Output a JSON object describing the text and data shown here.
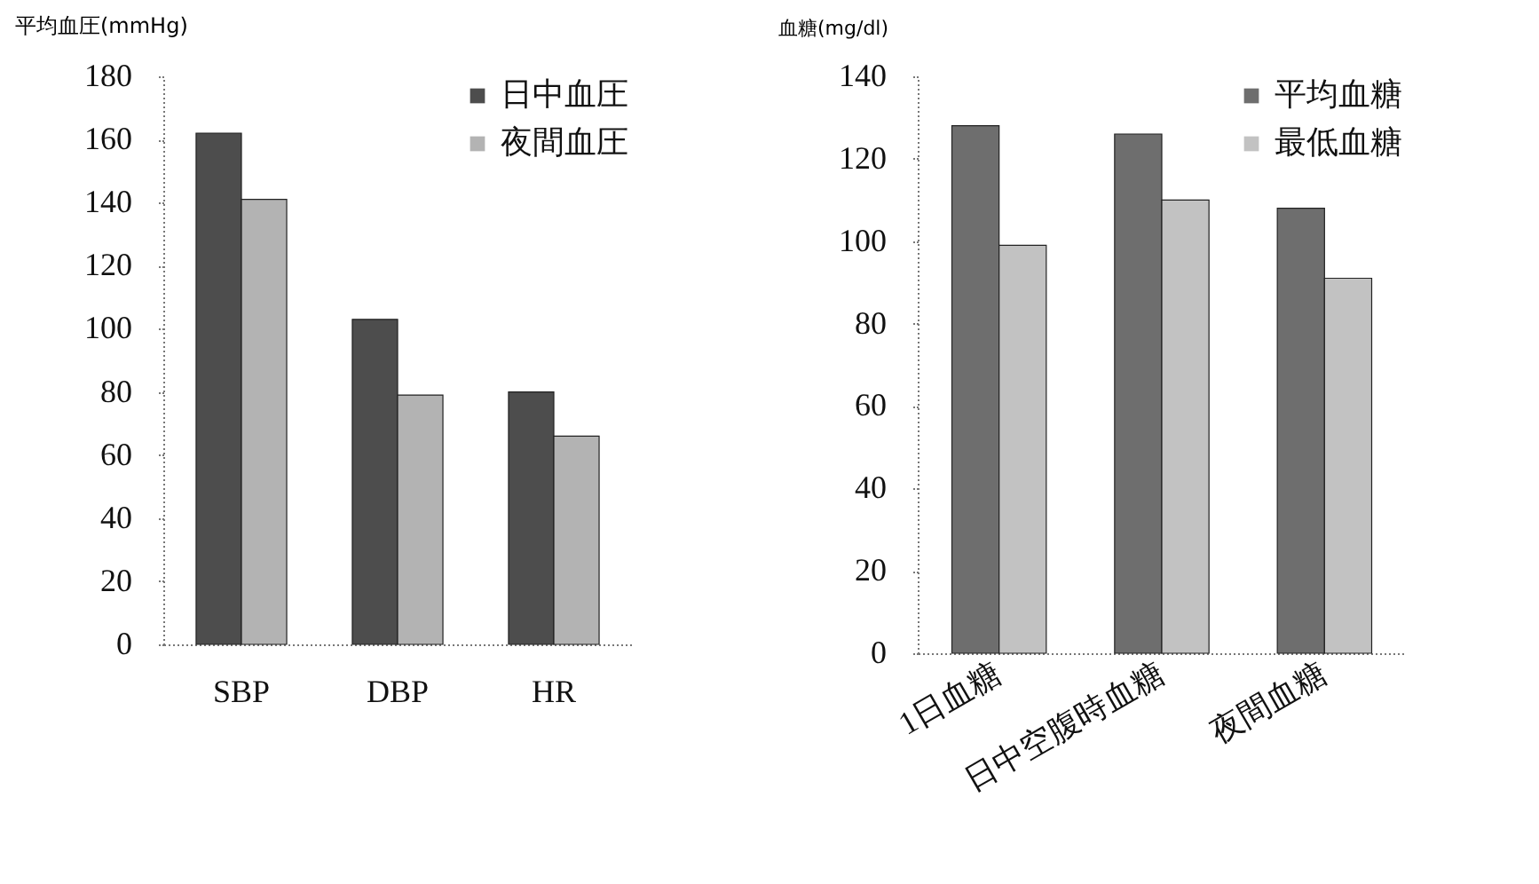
{
  "chart_data": [
    {
      "type": "bar",
      "ylabel": "平均血圧(mmHg)",
      "categories": [
        "SBP",
        "DBP",
        "HR"
      ],
      "series": [
        {
          "name": "日中血圧",
          "color": "#4d4d4d",
          "values": [
            162,
            103,
            80
          ]
        },
        {
          "name": "夜間血圧",
          "color": "#b3b3b3",
          "values": [
            141,
            79,
            66
          ]
        }
      ],
      "ylim": [
        0,
        180
      ],
      "yticks": [
        0,
        20,
        40,
        60,
        80,
        100,
        120,
        140,
        160,
        180
      ],
      "grid": false,
      "legend": "top right"
    },
    {
      "type": "bar",
      "ylabel": "血糖(mg/dl)",
      "categories": [
        "1日血糖",
        "日中空腹時血糖",
        "夜間血糖"
      ],
      "series": [
        {
          "name": "平均血糖",
          "color": "#6e6e6e",
          "values": [
            128,
            126,
            108
          ]
        },
        {
          "name": "最低血糖",
          "color": "#c2c2c2",
          "values": [
            99,
            110,
            91
          ]
        }
      ],
      "ylim": [
        0,
        140
      ],
      "yticks": [
        0,
        20,
        40,
        60,
        80,
        100,
        120,
        140
      ],
      "grid": false,
      "legend": "top right"
    }
  ]
}
